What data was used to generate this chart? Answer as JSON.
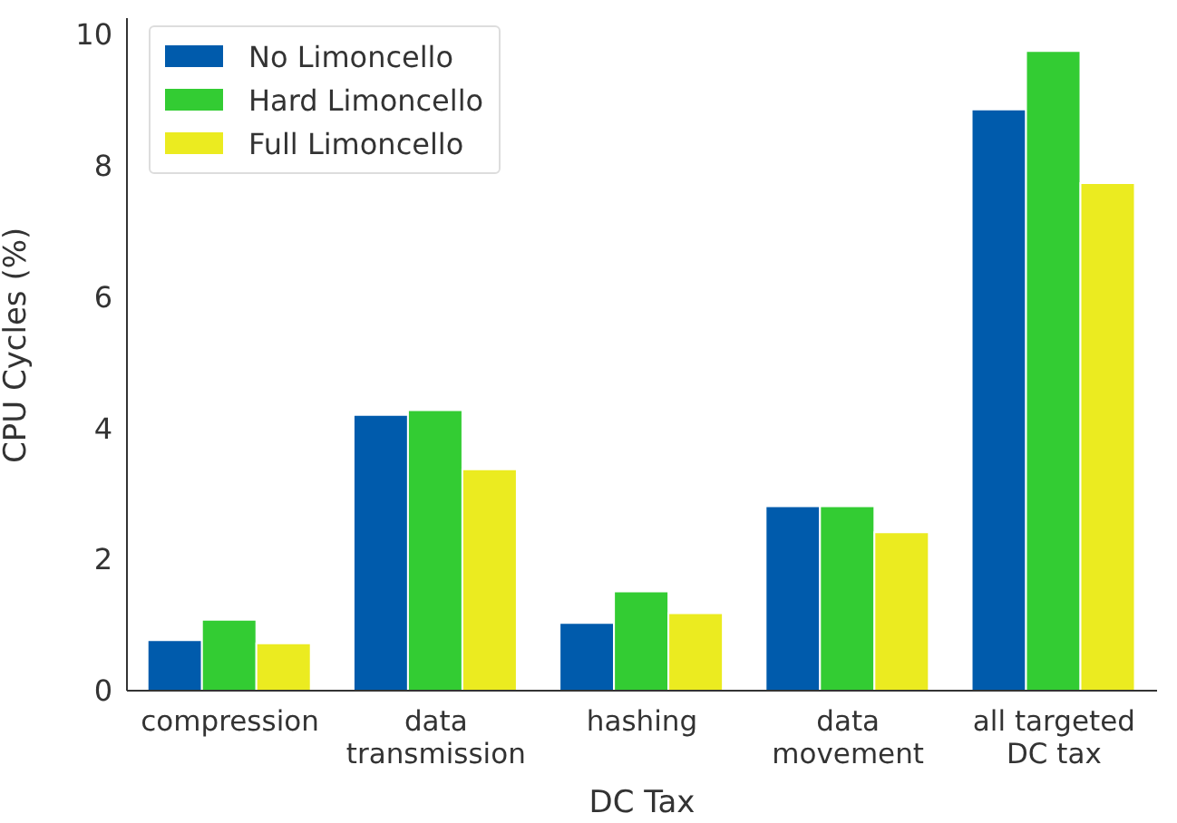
{
  "chart_data": {
    "type": "bar",
    "xlabel": "DC Tax",
    "ylabel": "CPU Cycles (%)",
    "categories": [
      "compression",
      "data\ntransmission",
      "hashing",
      "data\nmovement",
      "all targeted\nDC tax"
    ],
    "series": [
      {
        "name": "No Limoncello",
        "color": "#005bac",
        "values": [
          0.77,
          4.2,
          1.03,
          2.81,
          8.85
        ]
      },
      {
        "name": "Hard Limoncello",
        "color": "#33cc33",
        "values": [
          1.08,
          4.27,
          1.51,
          2.81,
          9.74
        ]
      },
      {
        "name": "Full Limoncello",
        "color": "#ebeb20",
        "values": [
          0.72,
          3.37,
          1.18,
          2.41,
          7.73
        ]
      }
    ],
    "ylim": [
      0,
      10.24
    ],
    "yticks": [
      0,
      2,
      4,
      6,
      8,
      10
    ],
    "grid": false,
    "legend": "top left"
  }
}
